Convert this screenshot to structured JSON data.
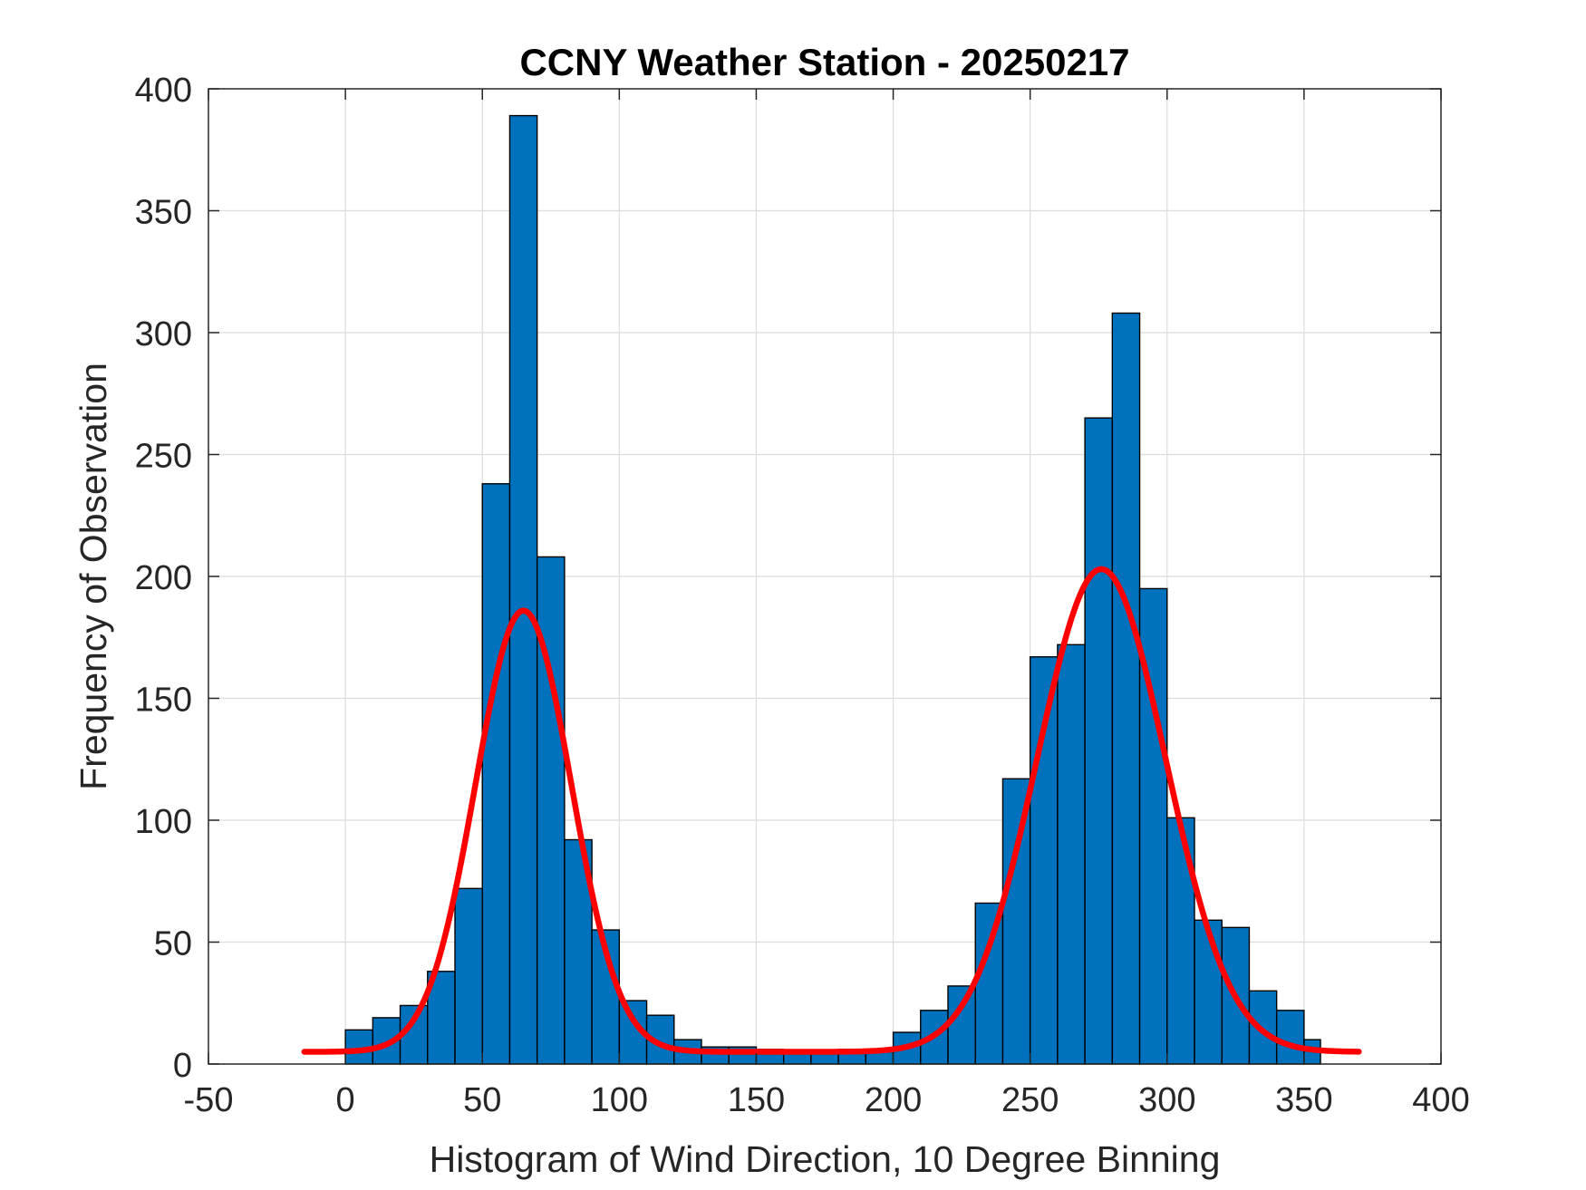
{
  "chart_data": {
    "type": "bar",
    "title": "CCNY Weather Station - 20250217",
    "xlabel": "Histogram of Wind Direction, 10 Degree Binning",
    "ylabel": "Frequency of Observation",
    "xlim": [
      -50,
      400
    ],
    "ylim": [
      0,
      400
    ],
    "xticks": [
      -50,
      0,
      50,
      100,
      150,
      200,
      250,
      300,
      350,
      400
    ],
    "yticks": [
      0,
      50,
      100,
      150,
      200,
      250,
      300,
      350,
      400
    ],
    "grid": true,
    "bin_width": 10,
    "bin_edges": [
      0,
      10,
      20,
      30,
      40,
      50,
      60,
      70,
      80,
      90,
      100,
      110,
      120,
      130,
      140,
      150,
      160,
      170,
      180,
      190,
      200,
      210,
      220,
      230,
      240,
      250,
      260,
      270,
      280,
      290,
      300,
      310,
      320,
      330,
      340,
      350,
      356
    ],
    "values": [
      14,
      19,
      24,
      38,
      72,
      238,
      389,
      208,
      92,
      55,
      26,
      20,
      10,
      7,
      7,
      6,
      5,
      5,
      6,
      5,
      13,
      22,
      32,
      66,
      117,
      167,
      172,
      265,
      308,
      195,
      101,
      59,
      56,
      30,
      22,
      10
    ],
    "bar_color": "#0072bd",
    "bar_edge_color": "#000000",
    "fit_curve": {
      "type": "two-term gaussian",
      "color": "#ff0000",
      "x_range": [
        -15,
        370
      ],
      "components": [
        {
          "amplitude": 181,
          "mean": 65,
          "sigma": 17.5
        },
        {
          "amplitude": 198,
          "mean": 276,
          "sigma": 23.5
        }
      ],
      "offset": 5
    }
  }
}
